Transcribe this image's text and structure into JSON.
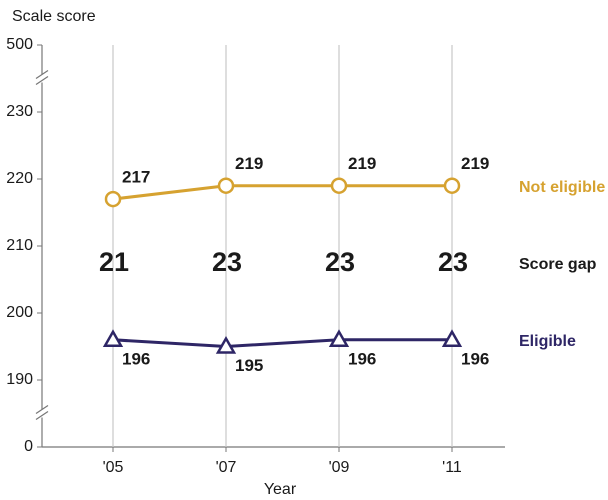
{
  "chart_data": {
    "type": "line",
    "y_label": "Scale score",
    "x_label": "Year",
    "categories": [
      "'05",
      "'07",
      "'09",
      "'11"
    ],
    "series": [
      {
        "name": "Not eligible",
        "color": "#d6a230",
        "marker": "circle",
        "values": [
          217,
          219,
          219,
          219
        ]
      },
      {
        "name": "Eligible",
        "color": "#2e2666",
        "marker": "triangle",
        "values": [
          196,
          195,
          196,
          196
        ]
      }
    ],
    "score_gap": {
      "name": "Score gap",
      "values": [
        21,
        23,
        23,
        23
      ]
    },
    "ylim": [
      0,
      500
    ],
    "yticks": [
      0,
      190,
      200,
      210,
      220,
      230,
      500
    ],
    "axis_breaks": true,
    "grid": "vertical"
  }
}
